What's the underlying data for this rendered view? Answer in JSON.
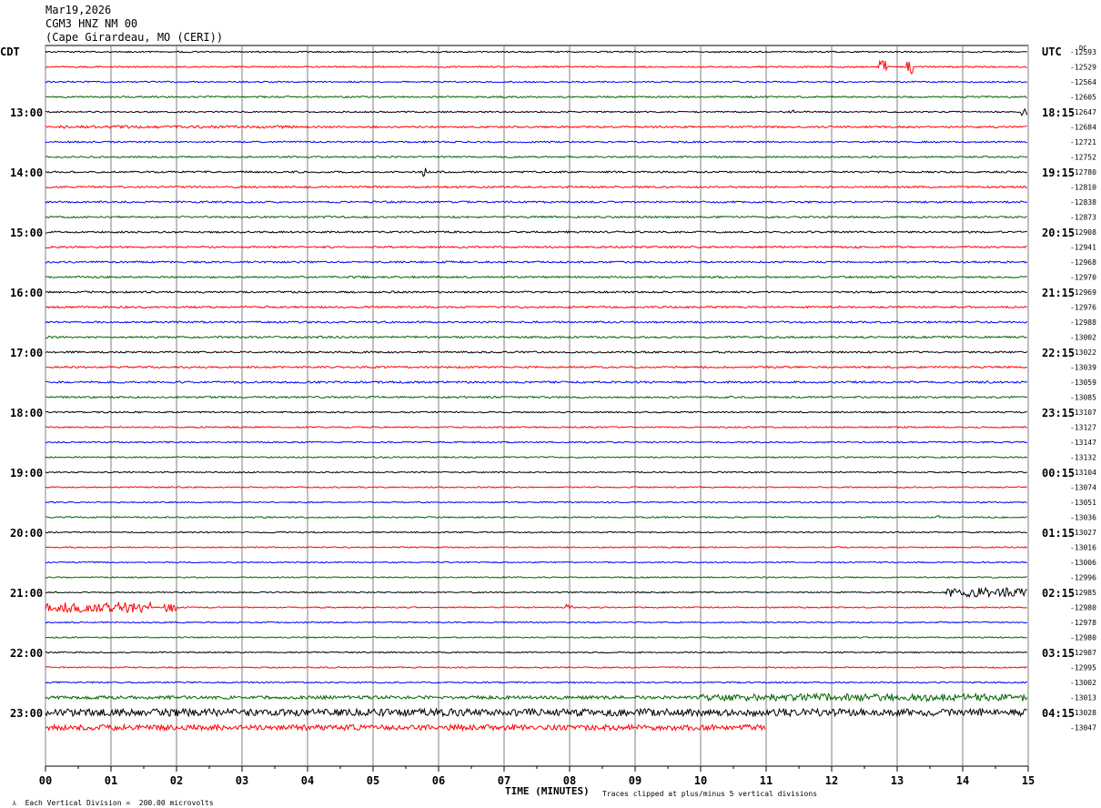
{
  "header": {
    "date": "Mar19,2026",
    "station": "CGM3 HNZ NM 00",
    "location": "(Cape Girardeau, MO (CERI))"
  },
  "labels": {
    "left_zone": "CDT",
    "right_zone": "UTC",
    "dc_label": "DC",
    "xlabel": "TIME (MINUTES)",
    "scale_note": "Each Vertical Division =  200.00 microvolts",
    "clip_note": "Traces clipped at plus/minus 5 vertical divisions"
  },
  "colors": {
    "trace_cycle": [
      "#000000",
      "#ff0000",
      "#0000ff",
      "#006400"
    ],
    "grid": "#808080"
  },
  "chart_data": {
    "type": "line",
    "title": "CGM3 HNZ NM 00",
    "xlabel": "TIME (MINUTES)",
    "xlim": [
      0,
      15
    ],
    "x_ticks": [
      "00",
      "01",
      "02",
      "03",
      "04",
      "05",
      "06",
      "07",
      "08",
      "09",
      "10",
      "11",
      "12",
      "13",
      "14",
      "15"
    ],
    "left_hour_labels": [
      "13:00",
      "14:00",
      "15:00",
      "16:00",
      "17:00",
      "18:00",
      "19:00",
      "20:00",
      "21:00",
      "22:00",
      "23:00"
    ],
    "right_hour_labels": [
      "18:15",
      "19:15",
      "20:15",
      "21:15",
      "22:15",
      "23:15",
      "00:15",
      "01:15",
      "02:15",
      "03:15",
      "04:15"
    ],
    "trace_interval_minutes": 15,
    "dc_offsets": [
      -12593,
      -12529,
      -12564,
      -12605,
      -12647,
      -12684,
      -12721,
      -12752,
      -12780,
      -12810,
      -12838,
      -12873,
      -12908,
      -12941,
      -12968,
      -12970,
      -12969,
      -12976,
      -12988,
      -13002,
      -13022,
      -13039,
      -13059,
      -13085,
      -13107,
      -13127,
      -13147,
      -13132,
      -13104,
      -13074,
      -13051,
      -13036,
      -13027,
      -13016,
      -13006,
      -12996,
      -12985,
      -12980,
      -12978,
      -12980,
      -12987,
      -12995,
      -13002,
      -13013,
      -13028,
      -13047
    ],
    "noise_levels": [
      0.8,
      0.8,
      0.8,
      0.9,
      0.8,
      1.0,
      0.9,
      0.9,
      1.0,
      1.0,
      1.0,
      1.0,
      1.0,
      1.0,
      1.0,
      1.0,
      1.0,
      1.0,
      1.0,
      1.1,
      1.0,
      1.0,
      1.1,
      1.0,
      0.8,
      0.8,
      0.8,
      0.8,
      0.7,
      0.7,
      0.7,
      0.8,
      0.7,
      0.7,
      0.7,
      0.7,
      0.7,
      0.7,
      0.7,
      0.7,
      0.7,
      0.7,
      0.8,
      1.8,
      4.0,
      3.0
    ],
    "trace_end_minutes": {
      "45": 11.0
    },
    "events": [
      {
        "trace": 1,
        "start_min": 12.72,
        "end_min": 12.85,
        "amplitude": 8
      },
      {
        "trace": 1,
        "start_min": 13.15,
        "end_min": 13.25,
        "amplitude": 8
      },
      {
        "trace": 4,
        "start_min": 11.35,
        "end_min": 11.45,
        "amplitude": 3
      },
      {
        "trace": 4,
        "start_min": 14.9,
        "end_min": 15.0,
        "amplitude": 4
      },
      {
        "trace": 5,
        "start_min": 0.0,
        "end_min": 3.8,
        "amplitude": 1.5
      },
      {
        "trace": 8,
        "start_min": 5.75,
        "end_min": 5.8,
        "amplitude": 5
      },
      {
        "trace": 31,
        "start_min": 13.6,
        "end_min": 13.65,
        "amplitude": 4
      },
      {
        "trace": 36,
        "start_min": 13.75,
        "end_min": 15.0,
        "amplitude": 5
      },
      {
        "trace": 37,
        "start_min": 0.0,
        "end_min": 1.6,
        "amplitude": 6
      },
      {
        "trace": 37,
        "start_min": 1.8,
        "end_min": 2.0,
        "amplitude": 5
      },
      {
        "trace": 37,
        "start_min": 7.95,
        "end_min": 8.05,
        "amplitude": 4
      },
      {
        "trace": 43,
        "start_min": 10.0,
        "end_min": 15.0,
        "amplitude": 4
      }
    ]
  }
}
